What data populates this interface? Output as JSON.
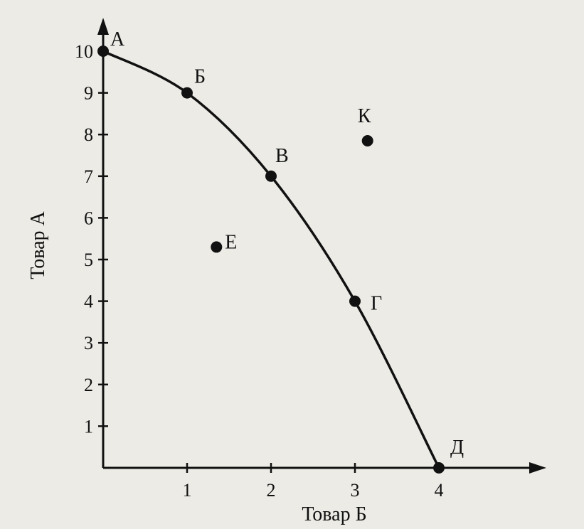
{
  "chart_data": {
    "type": "line",
    "xlabel": "Товар Б",
    "ylabel": "Товар А",
    "xlim": [
      0,
      5.2
    ],
    "ylim": [
      0,
      10.8
    ],
    "x_ticks": [
      "1",
      "2",
      "3",
      "4"
    ],
    "y_ticks": [
      "1",
      "2",
      "3",
      "4",
      "5",
      "6",
      "7",
      "8",
      "9",
      "10"
    ],
    "curve_points": [
      {
        "label": "А",
        "x": 0,
        "y": 10
      },
      {
        "label": "Б",
        "x": 1,
        "y": 9
      },
      {
        "label": "В",
        "x": 2,
        "y": 7
      },
      {
        "label": "Г",
        "x": 3,
        "y": 4
      },
      {
        "label": "Д",
        "x": 4,
        "y": 0
      }
    ],
    "other_points": [
      {
        "label": "Е",
        "x": 1.35,
        "y": 5.3
      },
      {
        "label": "К",
        "x": 3.15,
        "y": 7.85
      }
    ],
    "grid": false,
    "colors": {
      "ink": "#111111",
      "background": "#ecebe6"
    }
  }
}
